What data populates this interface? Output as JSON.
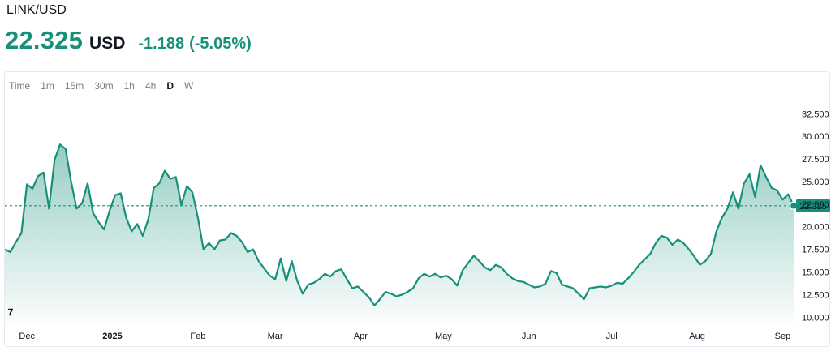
{
  "header": {
    "pair": "LINK/USD",
    "price": "22.325",
    "currency": "USD",
    "change": "-1.188",
    "change_pct": "(-5.05%)"
  },
  "timeframes": [
    {
      "label": "Time",
      "active": false
    },
    {
      "label": "1m",
      "active": false
    },
    {
      "label": "15m",
      "active": false
    },
    {
      "label": "30m",
      "active": false
    },
    {
      "label": "1h",
      "active": false
    },
    {
      "label": "4h",
      "active": false
    },
    {
      "label": "D",
      "active": true
    },
    {
      "label": "W",
      "active": false
    }
  ],
  "colors": {
    "line": "#16907a",
    "up": "#16907a",
    "area_top": "#16907a",
    "price_tag": "#16907a"
  },
  "logo": "tradingview-logo-icon",
  "chart_data": {
    "type": "area",
    "x_axis_labels": [
      {
        "label": "Dec",
        "date": "2024-12-01",
        "bold": false
      },
      {
        "label": "2025",
        "date": "2025-01-01",
        "bold": true
      },
      {
        "label": "Feb",
        "date": "2025-02-01",
        "bold": false
      },
      {
        "label": "Mar",
        "date": "2025-03-01",
        "bold": false
      },
      {
        "label": "Apr",
        "date": "2025-04-01",
        "bold": false
      },
      {
        "label": "May",
        "date": "2025-05-01",
        "bold": false
      },
      {
        "label": "Jun",
        "date": "2025-06-01",
        "bold": false
      },
      {
        "label": "Jul",
        "date": "2025-07-01",
        "bold": false
      },
      {
        "label": "Aug",
        "date": "2025-08-01",
        "bold": false
      },
      {
        "label": "Sep",
        "date": "2025-09-01",
        "bold": false
      }
    ],
    "y_ticks": [
      "32.500",
      "30.000",
      "27.500",
      "25.000",
      "22.500",
      "20.000",
      "17.500",
      "15.000",
      "12.500",
      "10.000"
    ],
    "y_range": [
      9.4,
      33.6
    ],
    "last_price_label": "22.325",
    "last_price": 22.325,
    "points": [
      [
        "2024-11-23",
        17.5
      ],
      [
        "2024-11-25",
        17.2
      ],
      [
        "2024-11-27",
        18.3
      ],
      [
        "2024-11-29",
        19.3
      ],
      [
        "2024-12-01",
        24.7
      ],
      [
        "2024-12-03",
        24.2
      ],
      [
        "2024-12-05",
        25.6
      ],
      [
        "2024-12-07",
        26.0
      ],
      [
        "2024-12-09",
        22.0
      ],
      [
        "2024-12-11",
        27.4
      ],
      [
        "2024-12-13",
        29.1
      ],
      [
        "2024-12-15",
        28.6
      ],
      [
        "2024-12-17",
        25.0
      ],
      [
        "2024-12-19",
        22.0
      ],
      [
        "2024-12-21",
        22.6
      ],
      [
        "2024-12-23",
        24.8
      ],
      [
        "2024-12-25",
        21.5
      ],
      [
        "2024-12-27",
        20.5
      ],
      [
        "2024-12-29",
        19.7
      ],
      [
        "2024-12-31",
        21.8
      ],
      [
        "2025-01-02",
        23.5
      ],
      [
        "2025-01-04",
        23.7
      ],
      [
        "2025-01-06",
        21.0
      ],
      [
        "2025-01-08",
        19.5
      ],
      [
        "2025-01-10",
        20.3
      ],
      [
        "2025-01-12",
        19.0
      ],
      [
        "2025-01-14",
        20.8
      ],
      [
        "2025-01-16",
        24.3
      ],
      [
        "2025-01-18",
        24.8
      ],
      [
        "2025-01-20",
        26.2
      ],
      [
        "2025-01-22",
        25.3
      ],
      [
        "2025-01-24",
        25.5
      ],
      [
        "2025-01-26",
        22.4
      ],
      [
        "2025-01-28",
        24.5
      ],
      [
        "2025-01-30",
        23.8
      ],
      [
        "2025-02-01",
        21.0
      ],
      [
        "2025-02-03",
        17.5
      ],
      [
        "2025-02-05",
        18.2
      ],
      [
        "2025-02-07",
        17.5
      ],
      [
        "2025-02-09",
        18.5
      ],
      [
        "2025-02-11",
        18.6
      ],
      [
        "2025-02-13",
        19.3
      ],
      [
        "2025-02-15",
        19.0
      ],
      [
        "2025-02-17",
        18.3
      ],
      [
        "2025-02-19",
        17.2
      ],
      [
        "2025-02-21",
        17.5
      ],
      [
        "2025-02-23",
        16.2
      ],
      [
        "2025-02-25",
        15.4
      ],
      [
        "2025-02-27",
        14.6
      ],
      [
        "2025-03-01",
        14.2
      ],
      [
        "2025-03-03",
        16.5
      ],
      [
        "2025-03-05",
        14.0
      ],
      [
        "2025-03-07",
        16.2
      ],
      [
        "2025-03-09",
        14.0
      ],
      [
        "2025-03-11",
        12.6
      ],
      [
        "2025-03-13",
        13.6
      ],
      [
        "2025-03-15",
        13.8
      ],
      [
        "2025-03-17",
        14.2
      ],
      [
        "2025-03-19",
        14.8
      ],
      [
        "2025-03-21",
        14.5
      ],
      [
        "2025-03-23",
        15.1
      ],
      [
        "2025-03-25",
        15.3
      ],
      [
        "2025-03-27",
        14.2
      ],
      [
        "2025-03-29",
        13.2
      ],
      [
        "2025-03-31",
        13.4
      ],
      [
        "2025-04-02",
        12.8
      ],
      [
        "2025-04-04",
        12.2
      ],
      [
        "2025-04-06",
        11.3
      ],
      [
        "2025-04-08",
        12.0
      ],
      [
        "2025-04-10",
        12.8
      ],
      [
        "2025-04-12",
        12.6
      ],
      [
        "2025-04-14",
        12.3
      ],
      [
        "2025-04-16",
        12.5
      ],
      [
        "2025-04-18",
        12.8
      ],
      [
        "2025-04-20",
        13.2
      ],
      [
        "2025-04-22",
        14.3
      ],
      [
        "2025-04-24",
        14.8
      ],
      [
        "2025-04-26",
        14.5
      ],
      [
        "2025-04-28",
        14.8
      ],
      [
        "2025-04-30",
        14.4
      ],
      [
        "2025-05-02",
        14.6
      ],
      [
        "2025-05-04",
        14.2
      ],
      [
        "2025-05-06",
        13.5
      ],
      [
        "2025-05-08",
        15.2
      ],
      [
        "2025-05-10",
        16.0
      ],
      [
        "2025-05-12",
        16.8
      ],
      [
        "2025-05-14",
        16.2
      ],
      [
        "2025-05-16",
        15.5
      ],
      [
        "2025-05-18",
        15.2
      ],
      [
        "2025-05-20",
        15.8
      ],
      [
        "2025-05-22",
        15.5
      ],
      [
        "2025-05-24",
        14.8
      ],
      [
        "2025-05-26",
        14.3
      ],
      [
        "2025-05-28",
        14.0
      ],
      [
        "2025-05-30",
        13.9
      ],
      [
        "2025-06-01",
        13.6
      ],
      [
        "2025-06-03",
        13.3
      ],
      [
        "2025-06-05",
        13.4
      ],
      [
        "2025-06-07",
        13.7
      ],
      [
        "2025-06-09",
        15.1
      ],
      [
        "2025-06-11",
        14.9
      ],
      [
        "2025-06-13",
        13.6
      ],
      [
        "2025-06-15",
        13.4
      ],
      [
        "2025-06-17",
        13.2
      ],
      [
        "2025-06-19",
        12.6
      ],
      [
        "2025-06-21",
        12.0
      ],
      [
        "2025-06-23",
        13.2
      ],
      [
        "2025-06-25",
        13.3
      ],
      [
        "2025-06-27",
        13.4
      ],
      [
        "2025-06-29",
        13.3
      ],
      [
        "2025-07-01",
        13.5
      ],
      [
        "2025-07-03",
        13.8
      ],
      [
        "2025-07-05",
        13.7
      ],
      [
        "2025-07-07",
        14.3
      ],
      [
        "2025-07-09",
        15.0
      ],
      [
        "2025-07-11",
        15.8
      ],
      [
        "2025-07-13",
        16.4
      ],
      [
        "2025-07-15",
        17.0
      ],
      [
        "2025-07-17",
        18.2
      ],
      [
        "2025-07-19",
        19.0
      ],
      [
        "2025-07-21",
        18.8
      ],
      [
        "2025-07-23",
        18.0
      ],
      [
        "2025-07-25",
        18.6
      ],
      [
        "2025-07-27",
        18.2
      ],
      [
        "2025-07-29",
        17.5
      ],
      [
        "2025-07-31",
        16.7
      ],
      [
        "2025-08-02",
        15.8
      ],
      [
        "2025-08-04",
        16.2
      ],
      [
        "2025-08-06",
        17.0
      ],
      [
        "2025-08-08",
        19.5
      ],
      [
        "2025-08-10",
        21.0
      ],
      [
        "2025-08-12",
        22.0
      ],
      [
        "2025-08-14",
        23.8
      ],
      [
        "2025-08-16",
        22.0
      ],
      [
        "2025-08-18",
        24.8
      ],
      [
        "2025-08-20",
        25.8
      ],
      [
        "2025-08-22",
        23.3
      ],
      [
        "2025-08-24",
        26.8
      ],
      [
        "2025-08-26",
        25.5
      ],
      [
        "2025-08-28",
        24.3
      ],
      [
        "2025-08-30",
        24.0
      ],
      [
        "2025-09-01",
        23.0
      ],
      [
        "2025-09-03",
        23.6
      ],
      [
        "2025-09-05",
        22.325
      ]
    ]
  }
}
